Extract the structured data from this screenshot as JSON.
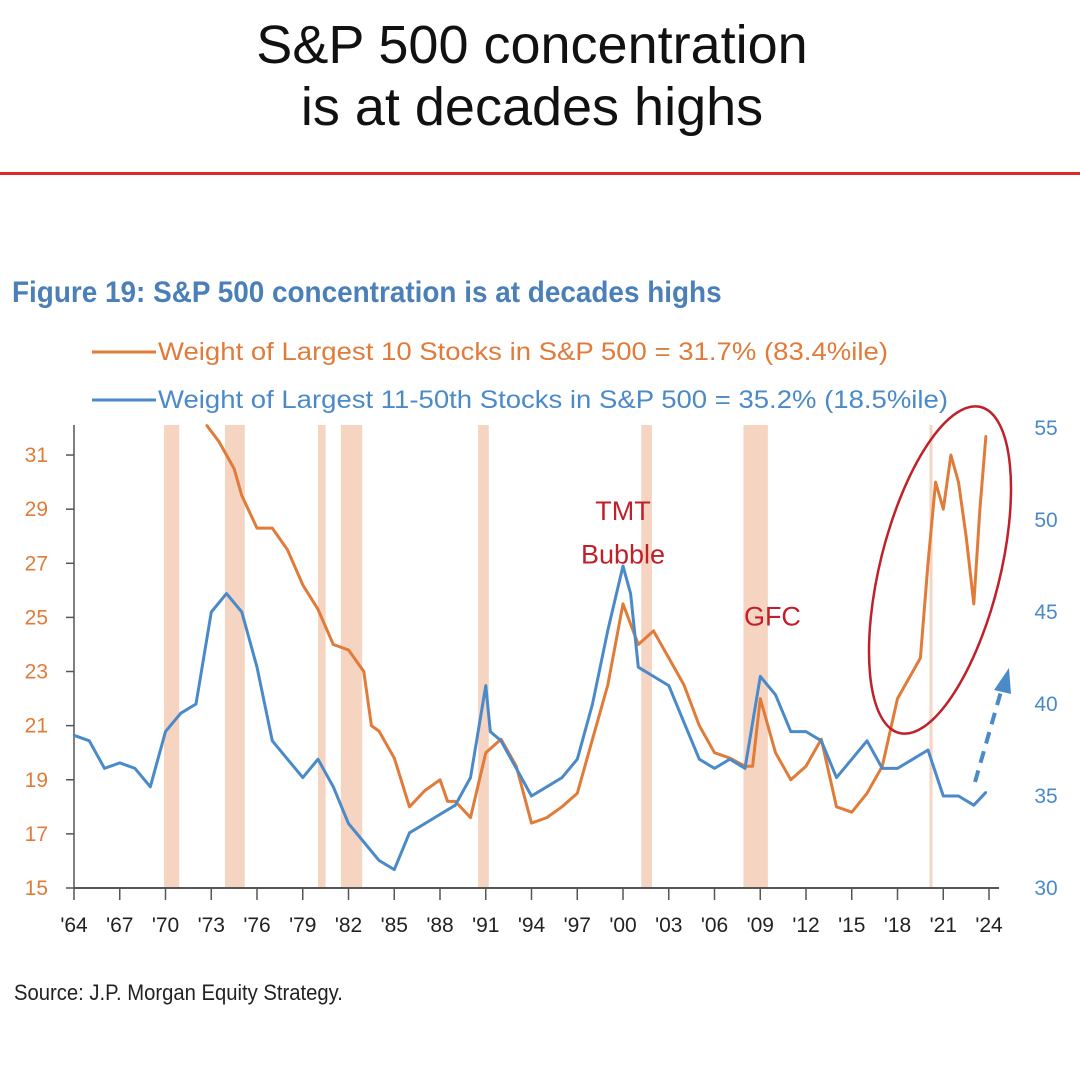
{
  "headline": {
    "line1": "S&P 500 concentration",
    "line2": "is at decades highs"
  },
  "figure_title": "Figure 19: S&P 500 concentration is at decades highs",
  "source": "Source: J.P. Morgan Equity Strategy.",
  "colors": {
    "orange": "#e07b39",
    "blue": "#4a8ac9",
    "recession": "#f6d4c2",
    "annotation": "#c0202a",
    "rule": "#e02a2a"
  },
  "chart_data": {
    "type": "line",
    "xlim": [
      1964,
      2024
    ],
    "x_tick_labels": [
      "'64",
      "'67",
      "'70",
      "'73",
      "'76",
      "'79",
      "'82",
      "'85",
      "'88",
      "'91",
      "'94",
      "'97",
      "'00",
      "'03",
      "'06",
      "'09",
      "'12",
      "'15",
      "'18",
      "'21",
      "'24"
    ],
    "y_left": {
      "lim": [
        15,
        32
      ],
      "ticks": [
        15,
        17,
        19,
        21,
        23,
        25,
        27,
        29,
        31
      ]
    },
    "y_right": {
      "lim": [
        30,
        55
      ],
      "ticks": [
        30,
        35,
        40,
        45,
        50,
        55
      ]
    },
    "grid": false,
    "legend_position": "top-left",
    "series": [
      {
        "name": "Weight of Largest 10 Stocks in S&P 500 = 31.7% (83.4%ile)",
        "axis": "left",
        "color": "orange",
        "x": [
          1972.7,
          1973.5,
          1974.5,
          1975,
          1976,
          1977,
          1978,
          1979,
          1980,
          1981,
          1982,
          1983,
          1983.5,
          1984,
          1985,
          1986,
          1987,
          1988,
          1988.5,
          1989,
          1990,
          1991,
          1992,
          1993,
          1994,
          1995,
          1996,
          1997,
          1998,
          1999,
          2000,
          2001,
          2002,
          2003,
          2004,
          2005,
          2006,
          2007,
          2008,
          2008.5,
          2009,
          2010,
          2011,
          2012,
          2013,
          2014,
          2015,
          2016,
          2017,
          2018,
          2019,
          2019.5,
          2020,
          2020.5,
          2021,
          2021.5,
          2022,
          2022.5,
          2023,
          2023.4,
          2023.8
        ],
        "y": [
          32.1,
          31.5,
          30.5,
          29.5,
          28.3,
          28.3,
          27.5,
          26.2,
          25.3,
          24.0,
          23.8,
          23.0,
          21.0,
          20.8,
          19.8,
          18.0,
          18.6,
          19.0,
          18.2,
          18.2,
          17.6,
          20.0,
          20.5,
          19.5,
          17.4,
          17.6,
          18.0,
          18.5,
          20.5,
          22.5,
          25.5,
          24.0,
          24.5,
          23.5,
          22.5,
          21.0,
          20.0,
          19.8,
          19.5,
          19.5,
          22.0,
          20.0,
          19.0,
          19.5,
          20.5,
          18.0,
          17.8,
          18.5,
          19.5,
          22.0,
          23.0,
          23.5,
          27.0,
          30.0,
          29.0,
          31.0,
          30.0,
          28.0,
          25.5,
          29.0,
          31.7
        ]
      },
      {
        "name": "Weight of Largest 11-50th Stocks in S&P 500 = 35.2% (18.5%ile)",
        "axis": "right",
        "color": "blue",
        "x": [
          1964,
          1965,
          1966,
          1967,
          1968,
          1969,
          1970,
          1971,
          1972,
          1973,
          1974,
          1975,
          1976,
          1977,
          1978,
          1979,
          1980,
          1981,
          1982,
          1983,
          1984,
          1985,
          1986,
          1987,
          1988,
          1989,
          1990,
          1991,
          1991.3,
          1992,
          1993,
          1994,
          1995,
          1996,
          1997,
          1998,
          1999,
          2000,
          2000.5,
          2001,
          2002,
          2003,
          2004,
          2005,
          2006,
          2007,
          2008,
          2009,
          2010,
          2011,
          2012,
          2013,
          2014,
          2015,
          2016,
          2017,
          2018,
          2019,
          2020,
          2021,
          2022,
          2023,
          2023.8
        ],
        "y": [
          38.3,
          38,
          36.5,
          36.8,
          36.5,
          35.5,
          38.5,
          39.5,
          40,
          45,
          46,
          45,
          42,
          38,
          37,
          36,
          37,
          35.5,
          33.5,
          32.5,
          31.5,
          31,
          33,
          33.5,
          34,
          34.5,
          36,
          41,
          38.5,
          38,
          36.5,
          35,
          35.5,
          36,
          37,
          40,
          44,
          47.5,
          46,
          42,
          41.5,
          41,
          39,
          37,
          36.5,
          37,
          36.5,
          41.5,
          40.5,
          38.5,
          38.5,
          38,
          36,
          37,
          38,
          36.5,
          36.5,
          37,
          37.5,
          35,
          35,
          34.5,
          35.2
        ]
      }
    ],
    "recessions": [
      [
        1969.9,
        1970.9
      ],
      [
        1973.9,
        1975.2
      ],
      [
        1980,
        1980.5
      ],
      [
        1981.5,
        1982.9
      ],
      [
        1990.5,
        1991.2
      ],
      [
        2001.2,
        2001.9
      ],
      [
        2007.9,
        2009.5
      ],
      [
        2020.1,
        2020.3
      ]
    ],
    "annotations": [
      {
        "text": "TMT",
        "x": 2000,
        "y_left": 28.6
      },
      {
        "text": "Bubble",
        "x": 2000,
        "y_left": 27.0
      },
      {
        "text": "GFC",
        "x": 2009.8,
        "y_left": 24.7
      }
    ]
  }
}
